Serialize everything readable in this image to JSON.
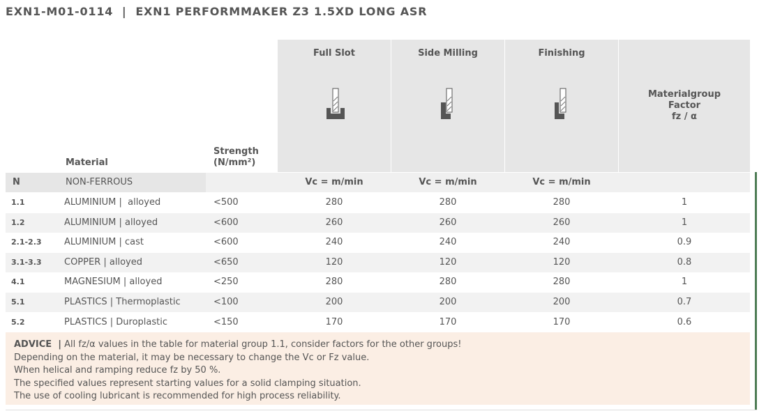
{
  "header": {
    "title": "EXN1-M01-0114  |  EXN1 PERFORMMAKER Z3 1.5XD LONG ASR"
  },
  "table": {
    "material_label": "Material",
    "strength_label": [
      "Strength",
      "(N/mm²)"
    ],
    "operations": [
      "Full Slot",
      "Side Milling",
      "Finishing"
    ],
    "factor_label": [
      "Materialgroup",
      "Factor",
      "fz / α"
    ],
    "group": {
      "code": "N",
      "name": "NON-FERROUS",
      "units": [
        "Vc = m/min",
        "Vc = m/min",
        "Vc = m/min"
      ]
    },
    "rows": [
      {
        "code": "1.1",
        "material": "ALUMINIUM |  alloyed",
        "strength": "<500",
        "values": [
          280,
          280,
          280,
          1
        ]
      },
      {
        "code": "1.2",
        "material": "ALUMINIUM | alloyed",
        "strength": "<600",
        "values": [
          260,
          260,
          260,
          1
        ]
      },
      {
        "code": "2.1-2.3",
        "material": "ALUMINIUM | cast",
        "strength": "<600",
        "values": [
          240,
          240,
          240,
          0.9
        ]
      },
      {
        "code": "3.1-3.3",
        "material": "COPPER | alloyed",
        "strength": "<650",
        "values": [
          120,
          120,
          120,
          0.8
        ]
      },
      {
        "code": "4.1",
        "material": "MAGNESIUM | alloyed",
        "strength": "<250",
        "values": [
          280,
          280,
          280,
          1
        ]
      },
      {
        "code": "5.1",
        "material": "PLASTICS | Thermoplastic",
        "strength": "<100",
        "values": [
          200,
          200,
          200,
          0.7
        ]
      },
      {
        "code": "5.2",
        "material": "PLASTICS | Duroplastic",
        "strength": "<150",
        "values": [
          170,
          170,
          170,
          0.6
        ]
      }
    ]
  },
  "advice": {
    "label": "ADVICE  |",
    "lines": [
      "All fz/α values in the table for material group 1.1, consider factors for the other groups!",
      "Depending on the material, it may be necessary to change the Vc or Fz value.",
      "When helical and ramping reduce fz by 50 %.",
      "The specified values represent starting values for a solid clamping situation.",
      "The use of cooling lubricant is recommended for high process reliability."
    ]
  }
}
